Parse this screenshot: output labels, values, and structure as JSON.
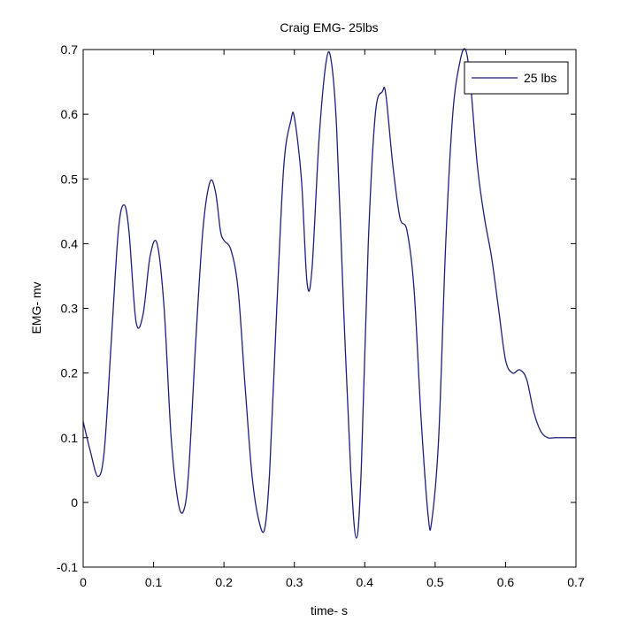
{
  "chart_data": {
    "type": "line",
    "title": "Craig EMG- 25lbs",
    "xlabel": "time- s",
    "ylabel": "EMG- mv",
    "xlim": [
      0,
      0.7
    ],
    "ylim": [
      -0.1,
      0.7
    ],
    "xticks": [
      0,
      0.1,
      0.2,
      0.3,
      0.4,
      0.5,
      0.6,
      0.7
    ],
    "xtick_labels": [
      "0",
      "0.1",
      "0.2",
      "0.3",
      "0.4",
      "0.5",
      "0.6",
      "0.7"
    ],
    "yticks": [
      -0.1,
      0,
      0.1,
      0.2,
      0.3,
      0.4,
      0.5,
      0.6,
      0.7
    ],
    "ytick_labels": [
      "-0.1",
      "0",
      "0.1",
      "0.2",
      "0.3",
      "0.4",
      "0.5",
      "0.6",
      "0.7"
    ],
    "grid": false,
    "legend": "top-right",
    "series": [
      {
        "name": "25 lbs",
        "color": "#1f1f7a",
        "x": [
          0.0,
          0.01,
          0.021,
          0.03,
          0.04,
          0.05,
          0.058,
          0.065,
          0.075,
          0.085,
          0.095,
          0.105,
          0.115,
          0.125,
          0.135,
          0.143,
          0.15,
          0.16,
          0.17,
          0.18,
          0.188,
          0.195,
          0.2,
          0.21,
          0.22,
          0.23,
          0.24,
          0.25,
          0.258,
          0.265,
          0.275,
          0.285,
          0.295,
          0.3,
          0.31,
          0.318,
          0.325,
          0.335,
          0.345,
          0.352,
          0.36,
          0.37,
          0.38,
          0.388,
          0.395,
          0.405,
          0.415,
          0.425,
          0.43,
          0.44,
          0.45,
          0.46,
          0.47,
          0.48,
          0.49,
          0.495,
          0.505,
          0.515,
          0.525,
          0.535,
          0.543,
          0.55,
          0.56,
          0.57,
          0.58,
          0.59,
          0.6,
          0.61,
          0.62,
          0.63,
          0.64,
          0.65,
          0.66,
          0.67,
          0.68,
          0.7
        ],
        "y": [
          0.125,
          0.08,
          0.04,
          0.08,
          0.25,
          0.42,
          0.46,
          0.42,
          0.28,
          0.29,
          0.38,
          0.4,
          0.3,
          0.1,
          0.0,
          -0.012,
          0.05,
          0.25,
          0.42,
          0.495,
          0.48,
          0.42,
          0.405,
          0.39,
          0.33,
          0.18,
          0.04,
          -0.03,
          -0.04,
          0.05,
          0.3,
          0.52,
          0.59,
          0.595,
          0.5,
          0.34,
          0.36,
          0.56,
          0.68,
          0.685,
          0.58,
          0.3,
          0.05,
          -0.055,
          0.05,
          0.4,
          0.6,
          0.635,
          0.63,
          0.52,
          0.44,
          0.42,
          0.33,
          0.13,
          -0.02,
          -0.03,
          0.1,
          0.4,
          0.6,
          0.68,
          0.7,
          0.65,
          0.52,
          0.44,
          0.38,
          0.3,
          0.22,
          0.2,
          0.205,
          0.19,
          0.14,
          0.11,
          0.1,
          0.1,
          0.1,
          0.1
        ]
      }
    ]
  }
}
